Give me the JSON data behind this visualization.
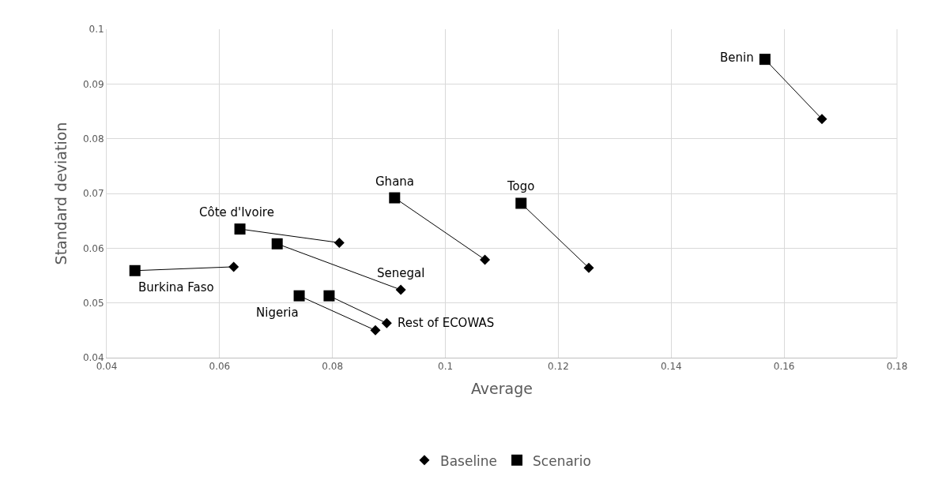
{
  "chart_data": {
    "type": "scatter",
    "xlabel": "Average",
    "ylabel": "Standard deviation",
    "xlim": [
      0.04,
      0.18
    ],
    "xticks": [
      0.04,
      0.06,
      0.08,
      0.1,
      0.12,
      0.14,
      0.16,
      0.18
    ],
    "ylim": [
      0.04,
      0.1
    ],
    "yticks": [
      0.04,
      0.05,
      0.06,
      0.07,
      0.08,
      0.09,
      0.1
    ],
    "grid": true,
    "legend": "bottom",
    "series": [
      {
        "type": "line",
        "color": "#000000",
        "marker": "none",
        "line_style": "solid",
        "x": [
          0.1566,
          0.1667
        ],
        "values": [
          0.0945,
          0.0836
        ]
      },
      {
        "type": "line",
        "color": "#000000",
        "marker": "none",
        "line_style": "solid",
        "x": [
          0.1134,
          0.1254
        ],
        "values": [
          0.0682,
          0.0564
        ]
      },
      {
        "type": "line",
        "color": "#000000",
        "marker": "none",
        "line_style": "solid",
        "x": [
          0.091,
          0.107
        ],
        "values": [
          0.0692,
          0.0579
        ]
      },
      {
        "type": "line",
        "color": "#000000",
        "marker": "none",
        "line_style": "solid",
        "x": [
          0.0636,
          0.0812
        ],
        "values": [
          0.0635,
          0.061
        ]
      },
      {
        "type": "line",
        "color": "#000000",
        "marker": "none",
        "line_style": "solid",
        "x": [
          0.045,
          0.0625
        ],
        "values": [
          0.0559,
          0.0566
        ]
      },
      {
        "type": "line",
        "color": "#000000",
        "marker": "none",
        "line_style": "solid",
        "x": [
          0.0702,
          0.0921
        ],
        "values": [
          0.0608,
          0.0524
        ]
      },
      {
        "type": "line",
        "color": "#000000",
        "marker": "none",
        "line_style": "solid",
        "x": [
          0.0741,
          0.0876
        ],
        "values": [
          0.0513,
          0.045
        ]
      },
      {
        "type": "line",
        "color": "#000000",
        "marker": "none",
        "line_style": "solid",
        "x": [
          0.0794,
          0.0896
        ],
        "values": [
          0.0513,
          0.0463
        ]
      },
      {
        "name": "Baseline",
        "color": "#000000",
        "marker": "diamond",
        "x": [
          0.1667,
          0.1254,
          0.107,
          0.0812,
          0.0625,
          0.0921,
          0.0876,
          0.0896
        ],
        "values": [
          0.0836,
          0.0564,
          0.0579,
          0.061,
          0.0566,
          0.0524,
          0.045,
          0.0463
        ]
      },
      {
        "name": "Scenario",
        "color": "#000000",
        "marker": "square",
        "x": [
          0.1566,
          0.1134,
          0.091,
          0.0636,
          0.045,
          0.0702,
          0.0741,
          0.0794
        ],
        "values": [
          0.0945,
          0.0682,
          0.0692,
          0.0635,
          0.0559,
          0.0608,
          0.0513,
          0.0513
        ]
      }
    ],
    "annotations": [
      {
        "text": "Benin",
        "x": 0.1566,
        "y": 0.0945
      },
      {
        "text": "Togo",
        "x": 0.1134,
        "y": 0.0682
      },
      {
        "text": "Ghana",
        "x": 0.091,
        "y": 0.0692
      },
      {
        "text": "Côte d'Ivoire",
        "x": 0.0636,
        "y": 0.0635
      },
      {
        "text": "Burkina Faso",
        "x": 0.045,
        "y": 0.0559
      },
      {
        "text": "Senegal",
        "x": 0.0921,
        "y": 0.0524
      },
      {
        "text": "Nigeria",
        "x": 0.0741,
        "y": 0.0513
      },
      {
        "text": "Rest of ECOWAS",
        "x": 0.0896,
        "y": 0.0463
      }
    ]
  }
}
